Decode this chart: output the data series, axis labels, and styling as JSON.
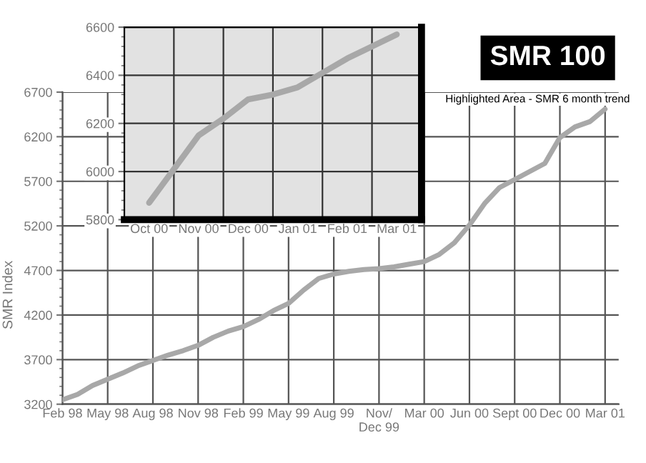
{
  "chart_data": [
    {
      "type": "line",
      "title": "SMR 100",
      "subtitle": "Highlighted Area - SMR 6 month trend",
      "ylabel": "SMR Index",
      "categories": [
        "Feb 98",
        null,
        null,
        "May 98",
        null,
        null,
        "Aug 98",
        null,
        null,
        "Nov 98",
        null,
        null,
        "Feb 99",
        null,
        null,
        "May 99",
        null,
        null,
        "Aug 99",
        null,
        null,
        "Nov/\nDec 99",
        null,
        null,
        "Mar 00",
        null,
        null,
        "Jun 00",
        null,
        null,
        "Sept 00",
        null,
        null,
        "Dec 00",
        null,
        null,
        "Mar 01"
      ],
      "series": [
        {
          "color": "#a8a8a8",
          "values": [
            3250,
            3310,
            3410,
            3480,
            3550,
            3630,
            3690,
            3750,
            3800,
            3860,
            3950,
            4020,
            4070,
            4150,
            4250,
            4330,
            4480,
            4610,
            4660,
            4690,
            4710,
            4720,
            4740,
            4770,
            4800,
            4880,
            5010,
            5210,
            5450,
            5630,
            5720,
            5810,
            5900,
            6190,
            6310,
            6370,
            6510
          ]
        }
      ],
      "ylim": [
        3200,
        6700
      ],
      "yticks": [
        3200,
        3700,
        4200,
        4700,
        5200,
        5700,
        6200,
        6700
      ],
      "grid": true,
      "marker": "none",
      "line_style": "solid"
    },
    {
      "type": "line",
      "categories": [
        "Oct 00",
        null,
        "Nov 00",
        null,
        "Dec 00",
        null,
        "Jan 01",
        null,
        "Feb 01",
        null,
        "Mar 01"
      ],
      "series": [
        {
          "color": "#a8a8a8",
          "values": [
            5870,
            6010,
            6150,
            6220,
            6300,
            6320,
            6350,
            6410,
            6470,
            6520,
            6570
          ]
        }
      ],
      "ylim": [
        5800,
        6600
      ],
      "yticks": [
        5800,
        6000,
        6200,
        6400,
        6600
      ],
      "grid": true,
      "marker": "none",
      "line_style": "solid"
    }
  ]
}
